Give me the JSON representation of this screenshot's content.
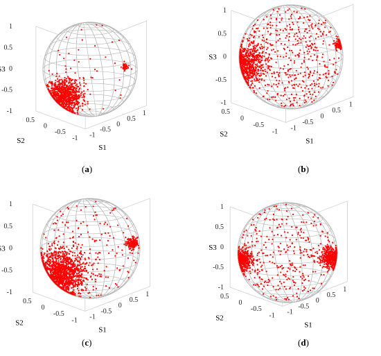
{
  "axes": {
    "x_label": "S1",
    "y_label": "S2",
    "z_label": "S3"
  },
  "z_ticks": [
    "1",
    "0.5",
    "0",
    "-0.5",
    "-1"
  ],
  "x_ticks": [
    "1",
    "0.5",
    "0",
    "-0.5",
    "-1"
  ],
  "y_ticks": [
    "0.5",
    "0",
    "-0.5",
    "-1"
  ],
  "colors": {
    "points": "#ff0000",
    "sphere": "#b4b4b4",
    "box": "#d0d0d0"
  },
  "panels": [
    {
      "label": "a",
      "cluster": "lower-left dense",
      "secondary": "upper-right small"
    },
    {
      "label": "b",
      "cluster": "left dense",
      "secondary": "scattered over sphere, right edge"
    },
    {
      "label": "c",
      "cluster": "lower-left very dense",
      "secondary": "right edge, scattered"
    },
    {
      "label": "d",
      "cluster": "left and right rims",
      "secondary": "scattered over sphere"
    }
  ]
}
